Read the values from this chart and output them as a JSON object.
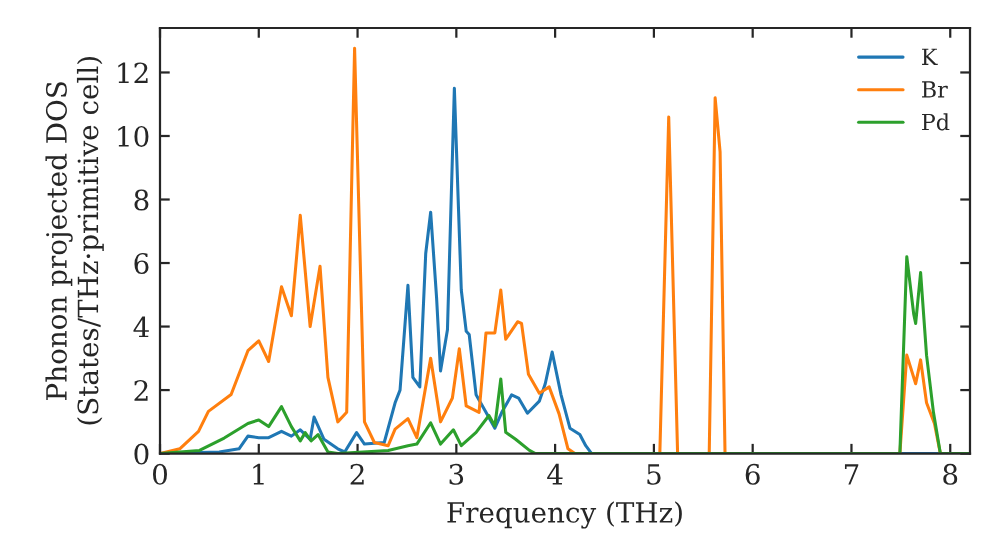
{
  "chart_data": {
    "type": "line",
    "xlabel": "Frequency (THz)",
    "ylabel": "Phonon projected DOS\n(States/THz·primitive cell)",
    "xlim": [
      0,
      8.2
    ],
    "xticks": [
      0,
      1,
      2,
      3,
      4,
      5,
      6,
      7,
      8
    ],
    "ylim": [
      0,
      13.4
    ],
    "yticks": [
      0,
      2,
      4,
      6,
      8,
      10,
      12
    ],
    "grid": false,
    "legend": "top right",
    "marker": "none",
    "line_style": "solid",
    "series": [
      {
        "name": "K",
        "color": "#1f77b4",
        "x": [
          0,
          0.6,
          0.8,
          0.89,
          1.0,
          1.1,
          1.23,
          1.33,
          1.42,
          1.52,
          1.56,
          1.66,
          1.8,
          1.87,
          1.99,
          2.07,
          2.27,
          2.38,
          2.43,
          2.51,
          2.56,
          2.63,
          2.69,
          2.74,
          2.8,
          2.84,
          2.91,
          2.98,
          3.05,
          3.1,
          3.13,
          3.2,
          3.3,
          3.39,
          3.46,
          3.56,
          3.63,
          3.72,
          3.84,
          3.9,
          3.97,
          4.06,
          4.15,
          4.25,
          4.31,
          4.37,
          8.2
        ],
        "values": [
          0,
          0.05,
          0.15,
          0.55,
          0.5,
          0.5,
          0.7,
          0.55,
          0.75,
          0.45,
          1.15,
          0.45,
          0.15,
          0.05,
          0.66,
          0.3,
          0.35,
          1.6,
          2.0,
          5.3,
          2.4,
          2.1,
          6.3,
          7.6,
          4.9,
          2.6,
          3.9,
          11.5,
          5.15,
          3.85,
          3.75,
          1.85,
          1.3,
          0.8,
          1.3,
          1.85,
          1.75,
          1.27,
          1.65,
          2.2,
          3.2,
          1.85,
          0.8,
          0.6,
          0.25,
          0,
          0
        ]
      },
      {
        "name": "Br",
        "color": "#ff7f0e",
        "x": [
          0,
          0.2,
          0.39,
          0.49,
          0.72,
          0.89,
          1.0,
          1.1,
          1.23,
          1.33,
          1.42,
          1.52,
          1.62,
          1.7,
          1.8,
          1.89,
          1.97,
          2.07,
          2.17,
          2.31,
          2.38,
          2.51,
          2.6,
          2.74,
          2.84,
          2.96,
          3.03,
          3.1,
          3.23,
          3.3,
          3.39,
          3.45,
          3.5,
          3.62,
          3.66,
          3.73,
          3.84,
          3.94,
          4.04,
          4.13,
          4.2,
          5.06,
          5.15,
          5.24,
          5.56,
          5.62,
          5.67,
          5.72,
          7.49,
          7.56,
          7.65,
          7.7,
          7.76,
          7.84,
          7.9,
          8.2
        ],
        "values": [
          0,
          0.15,
          0.7,
          1.33,
          1.86,
          3.24,
          3.55,
          2.9,
          5.25,
          4.34,
          7.5,
          4.0,
          5.9,
          2.4,
          1.0,
          1.3,
          12.76,
          1.0,
          0.35,
          0.25,
          0.77,
          1.1,
          0.5,
          3.0,
          1.0,
          1.75,
          3.3,
          1.5,
          1.3,
          3.8,
          3.8,
          5.15,
          3.6,
          4.15,
          4.1,
          2.5,
          1.9,
          2.1,
          1.25,
          0.15,
          0,
          0,
          10.6,
          0,
          0,
          11.2,
          9.5,
          0,
          0,
          3.1,
          2.2,
          2.95,
          1.6,
          0.95,
          0,
          0
        ]
      },
      {
        "name": "Pd",
        "color": "#2ca02c",
        "x": [
          0,
          0.4,
          0.65,
          0.89,
          1.0,
          1.1,
          1.23,
          1.33,
          1.42,
          1.47,
          1.53,
          1.6,
          1.7,
          1.8,
          2.31,
          2.51,
          2.6,
          2.74,
          2.84,
          2.97,
          3.05,
          3.2,
          3.33,
          3.39,
          3.45,
          3.5,
          3.6,
          3.74,
          3.8,
          7.49,
          7.56,
          7.63,
          7.65,
          7.7,
          7.76,
          7.83,
          7.9,
          8.2
        ],
        "values": [
          0,
          0.1,
          0.49,
          0.95,
          1.06,
          0.85,
          1.48,
          0.85,
          0.4,
          0.66,
          0.4,
          0.6,
          0.05,
          0,
          0.1,
          0.25,
          0.3,
          0.97,
          0.3,
          0.75,
          0.25,
          0.67,
          1.2,
          0.87,
          2.35,
          0.67,
          0.45,
          0.1,
          0,
          0,
          6.2,
          4.4,
          4.1,
          5.7,
          3.1,
          1.3,
          0,
          0
        ]
      }
    ]
  }
}
